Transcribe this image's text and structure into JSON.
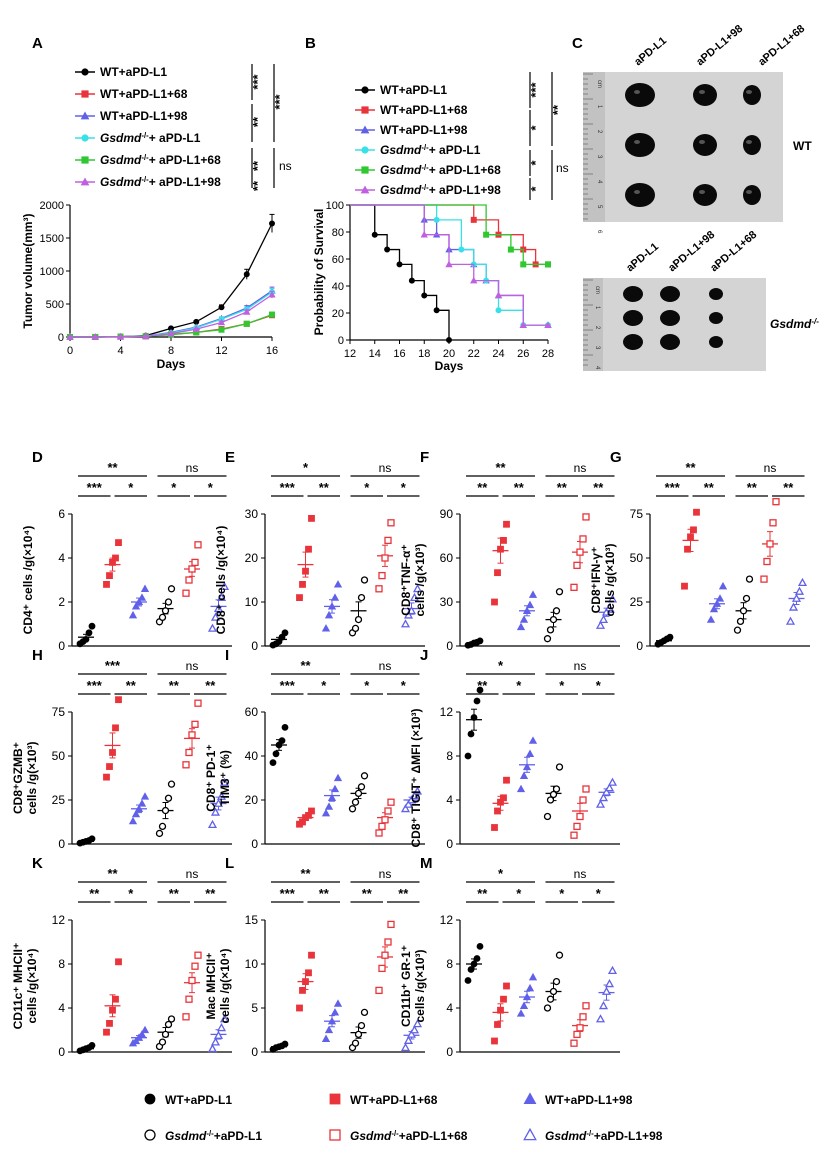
{
  "colors": {
    "wt": "#000000",
    "red": "#e8343a",
    "blue": "#6060e8",
    "cyan": "#38e0e8",
    "green": "#30c830",
    "violet": "#c060e0",
    "photo_bg": "#d4d4d4"
  },
  "panel_a": {
    "letter": "A",
    "legend": [
      {
        "label": "WT+aPD-L1",
        "color": "#000000",
        "marker": "circle"
      },
      {
        "label": "WT+aPD-L1+68",
        "color": "#e8343a",
        "marker": "square"
      },
      {
        "label": "WT+aPD-L1+98",
        "color": "#6060e8",
        "marker": "triangle"
      },
      {
        "label_pre": "Gsdmd",
        "label_sup": "-/-",
        "label_post": "+ aPD-L1",
        "color": "#38e0e8",
        "marker": "circle"
      },
      {
        "label_pre": "Gsdmd",
        "label_sup": "-/-",
        "label_post": "+ aPD-L1+68",
        "color": "#30c830",
        "marker": "square"
      },
      {
        "label_pre": "Gsdmd",
        "label_sup": "-/-",
        "label_post": "+ aPD-L1+98",
        "color": "#c060e0",
        "marker": "triangle"
      }
    ],
    "stats": [
      "***",
      "**",
      "***",
      "**",
      "ns",
      "**"
    ],
    "chart_data": {
      "type": "line",
      "ylabel": "Tumor volume(mm³)",
      "xlabel": "Days",
      "x": [
        0,
        2,
        4,
        6,
        8,
        10,
        12,
        14,
        16
      ],
      "xticks": [
        "0",
        "4",
        "8",
        "12",
        "16"
      ],
      "yticks": [
        "0",
        "500",
        "1000",
        "1500",
        "2000"
      ],
      "ylim": [
        0,
        2000
      ],
      "series": [
        {
          "name": "WT+aPD-L1",
          "values": [
            0,
            0,
            5,
            20,
            130,
            230,
            450,
            950,
            1720
          ]
        },
        {
          "name": "WT+aPD-L1+68",
          "values": [
            0,
            0,
            5,
            10,
            40,
            70,
            120,
            200,
            330
          ]
        },
        {
          "name": "WT+aPD-L1+98",
          "values": [
            0,
            0,
            5,
            15,
            70,
            150,
            280,
            440,
            700
          ]
        },
        {
          "name": "Gsdmd-/- + aPD-L1",
          "values": [
            0,
            0,
            5,
            15,
            60,
            140,
            270,
            420,
            680
          ]
        },
        {
          "name": "Gsdmd-/- + aPD-L1+68",
          "values": [
            0,
            0,
            5,
            10,
            35,
            70,
            110,
            200,
            340
          ]
        },
        {
          "name": "Gsdmd-/- + aPD-L1+98",
          "values": [
            0,
            0,
            5,
            10,
            50,
            120,
            220,
            380,
            640
          ]
        }
      ]
    }
  },
  "panel_b": {
    "letter": "B",
    "stats": [
      "***",
      "*",
      "**",
      "*",
      "ns",
      "*"
    ],
    "chart_data": {
      "type": "line",
      "ylabel": "Probability of Survival",
      "xlabel": "Days",
      "xticks": [
        "12",
        "14",
        "16",
        "18",
        "20",
        "22",
        "24",
        "26",
        "28"
      ],
      "yticks": [
        "0",
        "20",
        "40",
        "60",
        "80",
        "100"
      ],
      "xlim": [
        12,
        28
      ],
      "ylim": [
        0,
        100
      ],
      "series": [
        {
          "name": "WT+aPD-L1",
          "x": [
            12,
            14,
            15,
            16,
            17,
            18,
            19,
            20
          ],
          "values": [
            100,
            78,
            67,
            56,
            44,
            33,
            22,
            0
          ]
        },
        {
          "name": "WT+aPD-L1+68",
          "x": [
            12,
            22,
            24,
            26,
            27,
            28
          ],
          "values": [
            100,
            89,
            78,
            67,
            56,
            56
          ]
        },
        {
          "name": "WT+aPD-L1+98",
          "x": [
            12,
            18,
            19,
            20,
            22,
            23,
            24,
            26,
            28
          ],
          "values": [
            100,
            89,
            78,
            67,
            56,
            44,
            33,
            11,
            11
          ]
        },
        {
          "name": "Gsdmd-/- + aPD-L1",
          "x": [
            12,
            19,
            21,
            22,
            23,
            24,
            26,
            28
          ],
          "values": [
            100,
            89,
            67,
            56,
            44,
            22,
            11,
            11
          ]
        },
        {
          "name": "Gsdmd-/- + aPD-L1+68",
          "x": [
            12,
            23,
            25,
            26,
            28
          ],
          "values": [
            100,
            78,
            67,
            56,
            56
          ]
        },
        {
          "name": "Gsdmd-/- + aPD-L1+98",
          "x": [
            12,
            18,
            20,
            22,
            24,
            26,
            28
          ],
          "values": [
            100,
            78,
            56,
            44,
            33,
            11,
            11
          ]
        }
      ]
    }
  },
  "panel_c": {
    "letter": "C",
    "top_labels": [
      "aPD-L1",
      "aPD-L1+98",
      "aPD-L1+68"
    ],
    "bottom_labels": [
      "aPD-L1",
      "aPD-L1+98",
      "aPD-L1+68"
    ],
    "wt_label": "WT",
    "gsdmd_label": "Gsdmd",
    "gsdmd_sup": "-/-",
    "ruler_top": [
      "cm",
      "1",
      "2",
      "3",
      "4",
      "5",
      "6"
    ],
    "ruler_bottom": [
      "cm",
      "1",
      "2",
      "3",
      "4"
    ]
  },
  "scatter": [
    {
      "letter": "D",
      "ylabel1": "CD4⁺ cells /g(×10⁴)",
      "ylabel2": "",
      "ymax": 6,
      "yticks": [
        "0",
        "2",
        "4",
        "6"
      ],
      "means": [
        0.4,
        3.7,
        2.0,
        1.7,
        3.5,
        1.8
      ],
      "values": [
        [
          0.1,
          0.2,
          0.3,
          0.6,
          0.9
        ],
        [
          2.8,
          3.2,
          3.8,
          4.0,
          4.7
        ],
        [
          1.4,
          1.8,
          2.0,
          2.2,
          2.6
        ],
        [
          1.1,
          1.3,
          1.6,
          2.0,
          2.6
        ],
        [
          2.4,
          3.0,
          3.5,
          3.8,
          4.6
        ],
        [
          0.8,
          1.3,
          1.7,
          2.2,
          2.7
        ]
      ],
      "brackets": [
        {
          "l": "**"
        },
        {
          "l": "***"
        },
        {
          "l": "*"
        },
        {
          "l": "ns"
        },
        {
          "l": "*"
        },
        {
          "l": "*"
        }
      ]
    },
    {
      "letter": "E",
      "ylabel1": "CD8⁺ cells /g(×10⁴)",
      "ylabel2": "",
      "ymax": 30,
      "yticks": [
        "0",
        "10",
        "20",
        "30"
      ],
      "means": [
        1.5,
        18.5,
        9.0,
        8.0,
        20.5,
        8.5
      ],
      "values": [
        [
          0.2,
          0.5,
          1.0,
          2.0,
          3.0
        ],
        [
          11.0,
          14.0,
          17.0,
          22.0,
          29.0
        ],
        [
          4.0,
          7.0,
          9.0,
          11.0,
          14.0
        ],
        [
          3.0,
          4.0,
          6.0,
          11.0,
          15.0
        ],
        [
          13.0,
          16.0,
          20.0,
          24.0,
          28.0
        ],
        [
          5.0,
          7.0,
          8.0,
          11.0,
          13.0
        ]
      ],
      "brackets": [
        {
          "l": "*"
        },
        {
          "l": "***"
        },
        {
          "l": "**"
        },
        {
          "l": "ns"
        },
        {
          "l": "*"
        },
        {
          "l": "*"
        }
      ]
    },
    {
      "letter": "F",
      "ylabel1": "CD8⁺TNF-α⁺",
      "ylabel2": "cells /g(×10³)",
      "ymax": 90,
      "yticks": [
        "0",
        "30",
        "60",
        "90"
      ],
      "means": [
        2.0,
        65.0,
        24.0,
        18.0,
        64.0,
        23.0
      ],
      "values": [
        [
          0.5,
          1.0,
          2.0,
          2.5,
          3.5
        ],
        [
          30.0,
          50.0,
          66.0,
          72.0,
          83.0
        ],
        [
          13.0,
          18.0,
          24.0,
          28.0,
          35.0
        ],
        [
          5.0,
          11.0,
          18.0,
          24.0,
          37.0
        ],
        [
          40.0,
          55.0,
          64.0,
          73.0,
          88.0
        ],
        [
          14.0,
          18.0,
          23.0,
          26.0,
          32.0
        ]
      ],
      "brackets": [
        {
          "l": "**"
        },
        {
          "l": "**"
        },
        {
          "l": "**"
        },
        {
          "l": "ns"
        },
        {
          "l": "**"
        },
        {
          "l": "**"
        }
      ]
    },
    {
      "letter": "G",
      "ylabel1": "CD8⁺IFN-γ⁺",
      "ylabel2": "cells /g(×10³)",
      "ymax": 75,
      "yticks": [
        "0",
        "25",
        "50",
        "75"
      ],
      "means": [
        3.0,
        60.0,
        24.0,
        20.0,
        58.0,
        27.0
      ],
      "values": [
        [
          1.0,
          2.0,
          3.0,
          4.0,
          5.0
        ],
        [
          34.0,
          55.0,
          62.0,
          66.0,
          76.0
        ],
        [
          15.0,
          21.0,
          24.0,
          27.0,
          34.0
        ],
        [
          9.0,
          14.0,
          20.0,
          27.0,
          38.0
        ],
        [
          38.0,
          48.0,
          58.0,
          70.0,
          82.0
        ],
        [
          14.0,
          22.0,
          27.0,
          31.0,
          36.0
        ]
      ],
      "brackets": [
        {
          "l": "**"
        },
        {
          "l": "***"
        },
        {
          "l": "**"
        },
        {
          "l": "ns"
        },
        {
          "l": "**"
        },
        {
          "l": "**"
        }
      ]
    },
    {
      "letter": "H",
      "ylabel1": "CD8⁺GZMB⁺",
      "ylabel2": "cells /g(×10³)",
      "ymax": 75,
      "yticks": [
        "0",
        "25",
        "50",
        "75"
      ],
      "means": [
        1.5,
        56.0,
        20.0,
        19.0,
        60.0,
        23.0
      ],
      "values": [
        [
          0.5,
          1.0,
          1.5,
          2.0,
          3.0
        ],
        [
          38.0,
          44.0,
          52.0,
          66.0,
          82.0
        ],
        [
          13.0,
          17.0,
          20.0,
          23.0,
          27.0
        ],
        [
          6.0,
          10.0,
          19.0,
          26.0,
          34.0
        ],
        [
          45.0,
          52.0,
          62.0,
          68.0,
          80.0
        ],
        [
          11.0,
          18.0,
          23.0,
          27.0,
          35.0
        ]
      ],
      "brackets": [
        {
          "l": "***"
        },
        {
          "l": "***"
        },
        {
          "l": "**"
        },
        {
          "l": "ns"
        },
        {
          "l": "**"
        },
        {
          "l": "**"
        }
      ]
    },
    {
      "letter": "I",
      "ylabel1": "CD8⁺ PD-1⁺",
      "ylabel2": "TIM3⁺ (%)",
      "ymax": 60,
      "yticks": [
        "0",
        "20",
        "40",
        "60"
      ],
      "means": [
        45.0,
        12.0,
        22.0,
        23.0,
        12.0,
        20.0
      ],
      "values": [
        [
          37.0,
          41.0,
          45.0,
          47.0,
          53.0
        ],
        [
          9.0,
          10.0,
          12.0,
          13.0,
          15.0
        ],
        [
          14.0,
          17.0,
          21.0,
          25.0,
          30.0
        ],
        [
          16.0,
          19.0,
          23.0,
          26.0,
          31.0
        ],
        [
          5.0,
          8.0,
          11.0,
          15.0,
          19.0
        ],
        [
          16.0,
          18.0,
          20.0,
          22.0,
          24.0
        ]
      ],
      "brackets": [
        {
          "l": "**"
        },
        {
          "l": "***"
        },
        {
          "l": "*"
        },
        {
          "l": "ns"
        },
        {
          "l": "*"
        },
        {
          "l": "*"
        }
      ]
    },
    {
      "letter": "J",
      "ylabel1": "CD8⁺ TIGIT⁺ ΔMFI (×10³)",
      "ylabel2": "",
      "ymax": 12,
      "yticks": [
        "0",
        "4",
        "8",
        "12"
      ],
      "means": [
        11.3,
        3.7,
        7.2,
        4.6,
        3.0,
        4.7
      ],
      "values": [
        [
          8.0,
          10.0,
          11.5,
          13.0,
          14.0
        ],
        [
          1.5,
          3.0,
          3.8,
          4.2,
          5.8
        ],
        [
          5.0,
          6.2,
          7.0,
          8.2,
          9.4
        ],
        [
          2.5,
          4.0,
          4.5,
          5.0,
          7.0
        ],
        [
          0.8,
          1.6,
          2.5,
          4.0,
          5.0
        ],
        [
          3.6,
          4.2,
          4.7,
          5.1,
          5.6
        ]
      ],
      "brackets": [
        {
          "l": "*"
        },
        {
          "l": "**"
        },
        {
          "l": "*"
        },
        {
          "l": "ns"
        },
        {
          "l": "*"
        },
        {
          "l": "*"
        }
      ]
    },
    {
      "letter": "K",
      "ylabel1": "CD11c⁺ MHCII⁺",
      "ylabel2": "cells /g(×10⁴)",
      "ymax": 12,
      "yticks": [
        "0",
        "4",
        "8",
        "12"
      ],
      "means": [
        0.3,
        4.2,
        1.3,
        1.8,
        6.3,
        1.6
      ],
      "values": [
        [
          0.1,
          0.2,
          0.3,
          0.4,
          0.6
        ],
        [
          1.8,
          2.6,
          3.8,
          4.8,
          8.2
        ],
        [
          0.8,
          1.0,
          1.3,
          1.6,
          2.0
        ],
        [
          0.5,
          0.9,
          1.6,
          2.5,
          3.0
        ],
        [
          3.2,
          4.8,
          6.5,
          7.8,
          8.8
        ],
        [
          0.3,
          0.9,
          1.5,
          2.2,
          3.0
        ]
      ],
      "brackets": [
        {
          "l": "**"
        },
        {
          "l": "**"
        },
        {
          "l": "*"
        },
        {
          "l": "ns"
        },
        {
          "l": "**"
        },
        {
          "l": "**"
        }
      ]
    },
    {
      "letter": "L",
      "ylabel1": "Mac MHCII⁺",
      "ylabel2": "cells /g(×10⁴)",
      "ymax": 15,
      "yticks": [
        "0",
        "5",
        "10",
        "15"
      ],
      "means": [
        0.6,
        8.0,
        3.5,
        2.2,
        10.8,
        1.9
      ],
      "values": [
        [
          0.3,
          0.5,
          0.6,
          0.7,
          0.9
        ],
        [
          5.0,
          7.0,
          8.0,
          9.0,
          11.0
        ],
        [
          1.5,
          2.5,
          3.5,
          4.5,
          5.5
        ],
        [
          0.5,
          1.0,
          2.0,
          3.0,
          4.5
        ],
        [
          7.0,
          9.5,
          11.0,
          12.5,
          14.5
        ],
        [
          0.5,
          1.3,
          2.0,
          2.5,
          3.2
        ]
      ],
      "brackets": [
        {
          "l": "**"
        },
        {
          "l": "***"
        },
        {
          "l": "**"
        },
        {
          "l": "ns"
        },
        {
          "l": "**"
        },
        {
          "l": "**"
        }
      ]
    },
    {
      "letter": "M",
      "ylabel1": "CD11b⁺ GR-1⁺",
      "ylabel2": "cells /g(×10³)",
      "ymax": 12,
      "yticks": [
        "0",
        "4",
        "8",
        "12"
      ],
      "means": [
        8.0,
        3.6,
        5.0,
        5.5,
        2.4,
        5.4
      ],
      "values": [
        [
          6.5,
          7.5,
          8.0,
          8.5,
          9.6
        ],
        [
          1.0,
          2.5,
          3.8,
          4.8,
          6.0
        ],
        [
          3.5,
          4.2,
          5.0,
          5.8,
          6.8
        ],
        [
          4.0,
          4.8,
          5.5,
          6.4,
          8.8
        ],
        [
          0.8,
          1.6,
          2.2,
          3.2,
          4.2
        ],
        [
          3.0,
          4.2,
          5.5,
          6.2,
          7.4
        ]
      ],
      "brackets": [
        {
          "l": "*"
        },
        {
          "l": "**"
        },
        {
          "l": "*"
        },
        {
          "l": "ns"
        },
        {
          "l": "*"
        },
        {
          "l": "*"
        }
      ]
    }
  ],
  "bottom_legend": [
    {
      "label": "WT+aPD-L1",
      "marker": "circle",
      "color": "#000000",
      "fill": true
    },
    {
      "label": "WT+aPD-L1+68",
      "marker": "square",
      "color": "#e8343a",
      "fill": true
    },
    {
      "label": "WT+aPD-L1+98",
      "marker": "triangle",
      "color": "#6060e8",
      "fill": true
    },
    {
      "label_pre": "Gsdmd",
      "label_sup": "-/-",
      "label_post": "+aPD-L1",
      "marker": "circle",
      "color": "#000000",
      "fill": false
    },
    {
      "label_pre": "Gsdmd",
      "label_sup": "-/-",
      "label_post": "+aPD-L1+68",
      "marker": "square",
      "color": "#e8343a",
      "fill": false
    },
    {
      "label_pre": "Gsdmd",
      "label_sup": "-/-",
      "label_post": "+aPD-L1+98",
      "marker": "triangle",
      "color": "#6060e8",
      "fill": false
    }
  ]
}
